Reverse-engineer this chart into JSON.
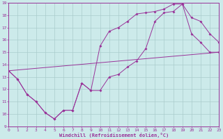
{
  "xlabel": "Windchill (Refroidissement éolien,°C)",
  "bg_color": "#cceaea",
  "line_color": "#993399",
  "grid_color": "#aacccc",
  "xmin": 0,
  "xmax": 23,
  "ymin": 9,
  "ymax": 19,
  "line1_x": [
    0,
    1,
    2,
    3,
    4,
    5,
    6,
    7,
    8,
    9,
    10,
    11,
    12,
    13,
    14,
    15,
    16,
    17,
    18,
    19,
    20,
    21,
    22,
    23
  ],
  "line1_y": [
    13.5,
    12.8,
    11.6,
    11.0,
    10.1,
    9.6,
    10.3,
    10.3,
    12.5,
    11.9,
    15.5,
    16.7,
    17.0,
    17.5,
    18.1,
    18.2,
    18.3,
    18.5,
    18.9,
    18.9,
    16.5,
    15.8,
    15.0,
    15.0
  ],
  "line2_x": [
    0,
    1,
    2,
    3,
    4,
    5,
    6,
    7,
    8,
    9,
    10,
    11,
    12,
    13,
    14,
    15,
    16,
    17,
    18,
    19,
    20,
    21,
    22,
    23
  ],
  "line2_y": [
    13.5,
    12.8,
    11.6,
    11.0,
    10.1,
    9.6,
    10.3,
    10.3,
    12.5,
    11.9,
    11.9,
    13.0,
    13.2,
    13.8,
    14.3,
    15.3,
    17.5,
    18.2,
    18.3,
    18.9,
    17.8,
    17.5,
    16.5,
    15.8
  ],
  "line3_x": [
    0,
    23
  ],
  "line3_y": [
    13.5,
    15.0
  ],
  "marker_size": 2.0
}
